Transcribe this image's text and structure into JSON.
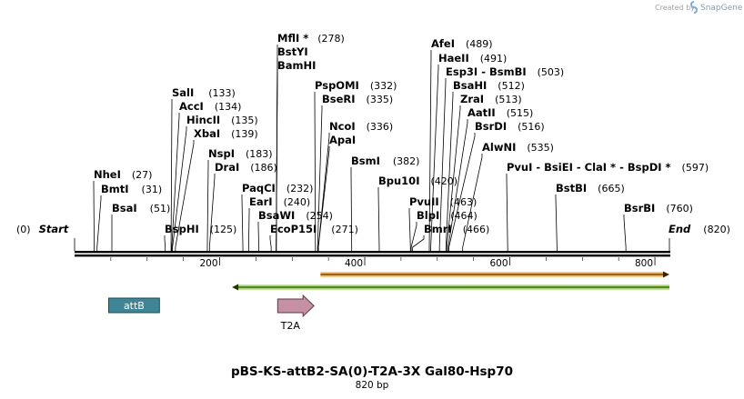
{
  "credit": {
    "text": "Created by",
    "brand": "SnapGene"
  },
  "sequence": {
    "name": "pBS-KS-attB2-SA(0)-T2A-3X Gal80-Hsp70",
    "length_label": "820 bp",
    "length": 820
  },
  "ends": {
    "start_pos": "(0)",
    "start_label": "Start",
    "end_label": "End",
    "end_pos": "(820)"
  },
  "ruler": [
    {
      "value": 200,
      "label": "200"
    },
    {
      "value": 400,
      "label": "400"
    },
    {
      "value": 600,
      "label": "600"
    },
    {
      "value": 800,
      "label": "800"
    }
  ],
  "enzymes": [
    {
      "name": "NheI",
      "pos": "(27)",
      "site": 27
    },
    {
      "name": "BmtI",
      "pos": "(31)",
      "site": 31
    },
    {
      "name": "BsaI",
      "pos": "(51)",
      "site": 51
    },
    {
      "name": "SalI",
      "pos": "(133)",
      "site": 133
    },
    {
      "name": "AccI",
      "pos": "(134)",
      "site": 134
    },
    {
      "name": "HincII",
      "pos": "(135)",
      "site": 135
    },
    {
      "name": "XbaI",
      "pos": "(139)",
      "site": 139
    },
    {
      "name": "BspHI",
      "pos": "(125)",
      "site": 125
    },
    {
      "name": "NspI",
      "pos": "(183)",
      "site": 183
    },
    {
      "name": "DraI",
      "pos": "(186)",
      "site": 186
    },
    {
      "name": "PaqCI",
      "pos": "(232)",
      "site": 232
    },
    {
      "name": "EarI",
      "pos": "(240)",
      "site": 240
    },
    {
      "name": "BsaWI",
      "pos": "(254)",
      "site": 254
    },
    {
      "name": "EcoP15I",
      "pos": "(271)",
      "site": 271
    },
    {
      "name": "MflI *",
      "pos": "(278)",
      "site": 278
    },
    {
      "name": "BstYI",
      "pos": "",
      "site": 278
    },
    {
      "name": "BamHI",
      "pos": "",
      "site": 278
    },
    {
      "name": "PspOMI",
      "pos": "(332)",
      "site": 332
    },
    {
      "name": "BseRI",
      "pos": "(335)",
      "site": 335
    },
    {
      "name": "NcoI",
      "pos": "(336)",
      "site": 336
    },
    {
      "name": "ApaI",
      "pos": "",
      "site": 336
    },
    {
      "name": "BsmI",
      "pos": "(382)",
      "site": 382
    },
    {
      "name": "Bpu10I",
      "pos": "(420)",
      "site": 420
    },
    {
      "name": "PvuII",
      "pos": "(463)",
      "site": 463
    },
    {
      "name": "BlpI",
      "pos": "(464)",
      "site": 464
    },
    {
      "name": "BmrI",
      "pos": "(466)",
      "site": 466
    },
    {
      "name": "AfeI",
      "pos": "(489)",
      "site": 489
    },
    {
      "name": "HaeII",
      "pos": "(491)",
      "site": 491
    },
    {
      "name": "Esp3I - BsmBI",
      "pos": "(503)",
      "site": 503
    },
    {
      "name": "BsaHI",
      "pos": "(512)",
      "site": 512
    },
    {
      "name": "ZraI",
      "pos": "(513)",
      "site": 513
    },
    {
      "name": "AatII",
      "pos": "(515)",
      "site": 515
    },
    {
      "name": "BsrDI",
      "pos": "(516)",
      "site": 516
    },
    {
      "name": "AlwNI",
      "pos": "(535)",
      "site": 535
    },
    {
      "name": "PvuI - BsiEI - ClaI * - BspDI *",
      "pos": "(597)",
      "site": 597
    },
    {
      "name": "BstBI",
      "pos": "(665)",
      "site": 665
    },
    {
      "name": "BsrBI",
      "pos": "(760)",
      "site": 760
    }
  ],
  "features": {
    "orange_bar": {
      "start": 339,
      "end": 820,
      "color": "#f0a030",
      "direction": "forward"
    },
    "green_bar": {
      "start": 217,
      "end": 820,
      "color": "#8ccf3c",
      "direction": "reverse"
    },
    "attB": {
      "label": "attB",
      "start": 47,
      "end": 117,
      "color": "#3f8595"
    },
    "T2A": {
      "label": "T2A",
      "start": 280,
      "end": 330,
      "color": "#c690a4"
    }
  }
}
